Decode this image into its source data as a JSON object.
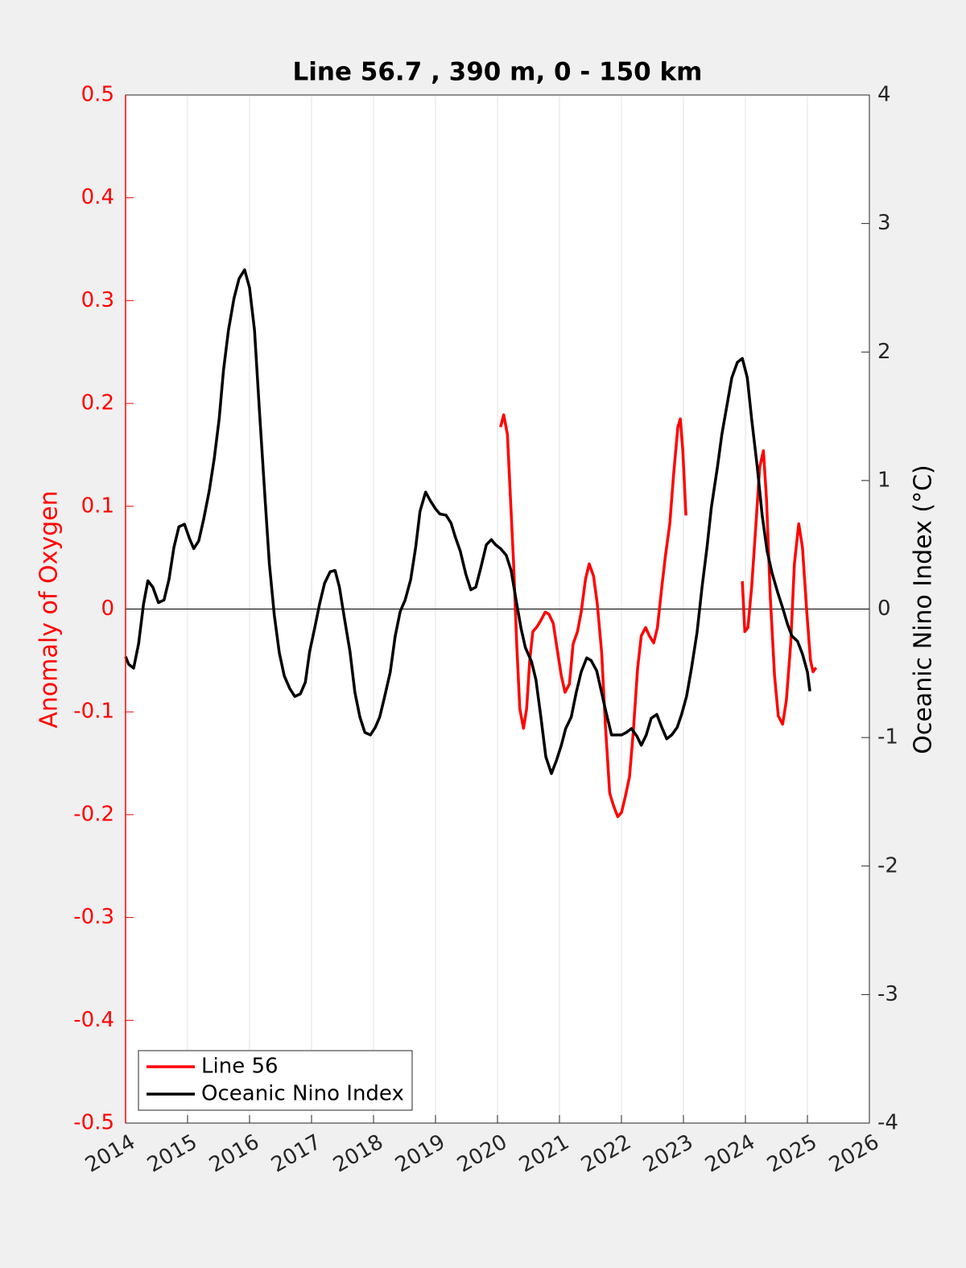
{
  "chart_data": {
    "type": "line",
    "title": "Line 56.7 , 390 m, 0 - 150 km",
    "ylabel": "Anomaly of Oxygen",
    "y2label": "Oceanic Nino Index (°C)",
    "xlim": [
      2014,
      2026
    ],
    "xticks": [
      2014,
      2015,
      2016,
      2017,
      2018,
      2019,
      2020,
      2021,
      2022,
      2023,
      2024,
      2025,
      2026
    ],
    "ylim": [
      -0.5,
      0.5
    ],
    "yticks": [
      -0.5,
      -0.4,
      -0.3,
      -0.2,
      -0.1,
      0,
      0.1,
      0.2,
      0.3,
      0.4,
      0.5
    ],
    "y2lim": [
      -4,
      4
    ],
    "y2ticks": [
      -4,
      -3,
      -2,
      -1,
      0,
      1,
      2,
      3,
      4
    ],
    "reference_line": 0,
    "grid": true,
    "legend": "lower left",
    "ycolor": "#ff0000",
    "series": [
      {
        "name": "Line 56",
        "color": "#ff0000",
        "x": [
          2020.05,
          2020.1,
          2020.16,
          2020.21,
          2020.26,
          2020.31,
          2020.36,
          2020.42,
          2020.47,
          2020.52,
          2020.57,
          2020.64,
          2020.7,
          2020.77,
          2020.83,
          2020.9,
          2020.96,
          2021.03,
          2021.09,
          2021.16,
          2021.22,
          2021.29,
          2021.35,
          2021.42,
          2021.48,
          2021.55,
          2021.61,
          2021.68,
          2021.74,
          2021.81,
          2021.87,
          2021.94,
          2022.0,
          2022.06,
          2022.13,
          2022.19,
          2022.26,
          2022.32,
          2022.39,
          2022.45,
          2022.52,
          2022.58,
          2022.65,
          2022.71,
          2022.78,
          2022.84,
          2022.91,
          2022.95,
          2022.99,
          2023.04,
          2023.5,
          2023.95,
          2023.99,
          2024.04,
          2024.1,
          2024.17,
          2024.23,
          2024.29,
          2024.34,
          2024.4,
          2024.47,
          2024.53,
          2024.6,
          2024.66,
          2024.73,
          2024.79,
          2024.86,
          2024.92,
          2024.99,
          2025.05,
          2025.09,
          2025.14
        ],
        "values": [
          0.177,
          0.189,
          0.17,
          0.107,
          0.044,
          -0.034,
          -0.097,
          -0.116,
          -0.097,
          -0.05,
          -0.022,
          -0.017,
          -0.011,
          -0.003,
          -0.005,
          -0.014,
          -0.038,
          -0.065,
          -0.081,
          -0.073,
          -0.034,
          -0.022,
          -0.003,
          0.029,
          0.044,
          0.032,
          0.005,
          -0.042,
          -0.112,
          -0.179,
          -0.191,
          -0.202,
          -0.198,
          -0.183,
          -0.163,
          -0.12,
          -0.058,
          -0.026,
          -0.018,
          -0.026,
          -0.033,
          -0.018,
          0.021,
          0.052,
          0.083,
          0.13,
          0.177,
          0.185,
          0.154,
          0.091,
          null,
          0.027,
          -0.022,
          -0.018,
          0.021,
          0.083,
          0.138,
          0.154,
          0.107,
          0.013,
          -0.065,
          -0.104,
          -0.112,
          -0.089,
          -0.034,
          0.044,
          0.083,
          0.06,
          -0.003,
          -0.05,
          -0.061,
          -0.057
        ]
      },
      {
        "name": "Oceanic Nino Index",
        "color": "#000000",
        "axis": "y2",
        "x": [
          2014.0,
          2014.05,
          2014.13,
          2014.21,
          2014.29,
          2014.36,
          2014.44,
          2014.53,
          2014.62,
          2014.7,
          2014.78,
          2014.86,
          2014.95,
          2015.03,
          2015.1,
          2015.18,
          2015.26,
          2015.35,
          2015.43,
          2015.51,
          2015.58,
          2015.66,
          2015.75,
          2015.83,
          2015.92,
          2016.0,
          2016.08,
          2016.16,
          2016.25,
          2016.32,
          2016.4,
          2016.48,
          2016.56,
          2016.65,
          2016.73,
          2016.82,
          2016.9,
          2016.97,
          2017.05,
          2017.13,
          2017.21,
          2017.3,
          2017.38,
          2017.45,
          2017.53,
          2017.62,
          2017.7,
          2017.78,
          2017.86,
          2017.95,
          2018.03,
          2018.1,
          2018.18,
          2018.27,
          2018.35,
          2018.43,
          2018.51,
          2018.6,
          2018.68,
          2018.75,
          2018.84,
          2018.92,
          2019.0,
          2019.07,
          2019.17,
          2019.25,
          2019.32,
          2019.4,
          2019.49,
          2019.57,
          2019.65,
          2019.73,
          2019.82,
          2019.9,
          2019.97,
          2020.05,
          2020.14,
          2020.22,
          2020.3,
          2020.38,
          2020.45,
          2020.55,
          2020.62,
          2020.7,
          2020.78,
          2020.87,
          2020.95,
          2021.03,
          2021.1,
          2021.19,
          2021.27,
          2021.35,
          2021.44,
          2021.51,
          2021.6,
          2021.68,
          2021.75,
          2021.84,
          2021.92,
          2022.0,
          2022.08,
          2022.16,
          2022.25,
          2022.32,
          2022.4,
          2022.48,
          2022.57,
          2022.65,
          2022.73,
          2022.81,
          2022.9,
          2022.97,
          2023.05,
          2023.13,
          2023.22,
          2023.3,
          2023.38,
          2023.45,
          2023.55,
          2023.62,
          2023.7,
          2023.78,
          2023.87,
          2023.95,
          2024.03,
          2024.1,
          2024.19,
          2024.27,
          2024.35,
          2024.43,
          2024.52,
          2024.6,
          2024.68,
          2024.75,
          2024.84,
          2024.92,
          2025.0,
          2025.04
        ],
        "values": [
          -0.37,
          -0.43,
          -0.46,
          -0.27,
          0.04,
          0.22,
          0.17,
          0.05,
          0.07,
          0.23,
          0.48,
          0.64,
          0.66,
          0.55,
          0.47,
          0.53,
          0.7,
          0.92,
          1.17,
          1.48,
          1.86,
          2.17,
          2.42,
          2.57,
          2.64,
          2.5,
          2.17,
          1.54,
          0.86,
          0.35,
          -0.05,
          -0.34,
          -0.52,
          -0.62,
          -0.68,
          -0.66,
          -0.57,
          -0.33,
          -0.15,
          0.04,
          0.2,
          0.29,
          0.3,
          0.17,
          -0.07,
          -0.33,
          -0.65,
          -0.84,
          -0.96,
          -0.98,
          -0.92,
          -0.84,
          -0.68,
          -0.49,
          -0.21,
          -0.02,
          0.07,
          0.23,
          0.48,
          0.76,
          0.91,
          0.84,
          0.78,
          0.74,
          0.73,
          0.67,
          0.56,
          0.45,
          0.27,
          0.15,
          0.17,
          0.32,
          0.5,
          0.54,
          0.5,
          0.47,
          0.42,
          0.3,
          0.07,
          -0.15,
          -0.3,
          -0.41,
          -0.55,
          -0.84,
          -1.15,
          -1.28,
          -1.18,
          -1.06,
          -0.93,
          -0.84,
          -0.65,
          -0.49,
          -0.38,
          -0.4,
          -0.48,
          -0.65,
          -0.8,
          -0.98,
          -0.98,
          -0.98,
          -0.96,
          -0.93,
          -0.99,
          -1.06,
          -0.98,
          -0.85,
          -0.82,
          -0.92,
          -1.01,
          -0.98,
          -0.92,
          -0.82,
          -0.68,
          -0.46,
          -0.18,
          0.17,
          0.48,
          0.79,
          1.11,
          1.36,
          1.58,
          1.8,
          1.92,
          1.95,
          1.8,
          1.48,
          1.11,
          0.73,
          0.45,
          0.28,
          0.13,
          0.01,
          -0.12,
          -0.21,
          -0.25,
          -0.35,
          -0.49,
          -0.64
        ]
      }
    ]
  }
}
